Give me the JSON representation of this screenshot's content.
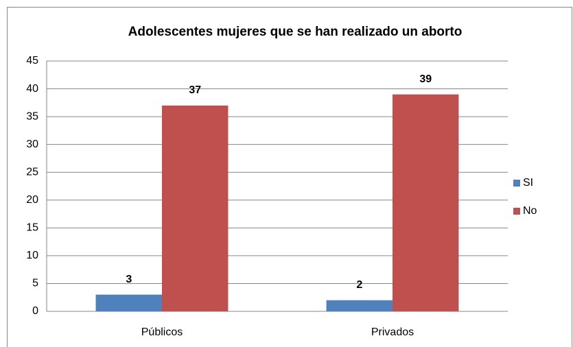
{
  "chart_data": {
    "type": "bar",
    "title": "Adolescentes mujeres que se han realizado un aborto",
    "categories": [
      "Públicos",
      "Privados"
    ],
    "series": [
      {
        "name": "SI",
        "color": "#4f81bd",
        "values": [
          3,
          2
        ]
      },
      {
        "name": "No",
        "color": "#c0504d",
        "values": [
          37,
          39
        ]
      }
    ],
    "ylim": [
      0,
      45
    ],
    "yticks": [
      0,
      5,
      10,
      15,
      20,
      25,
      30,
      35,
      40,
      45
    ],
    "grid": true,
    "legend": "right"
  }
}
